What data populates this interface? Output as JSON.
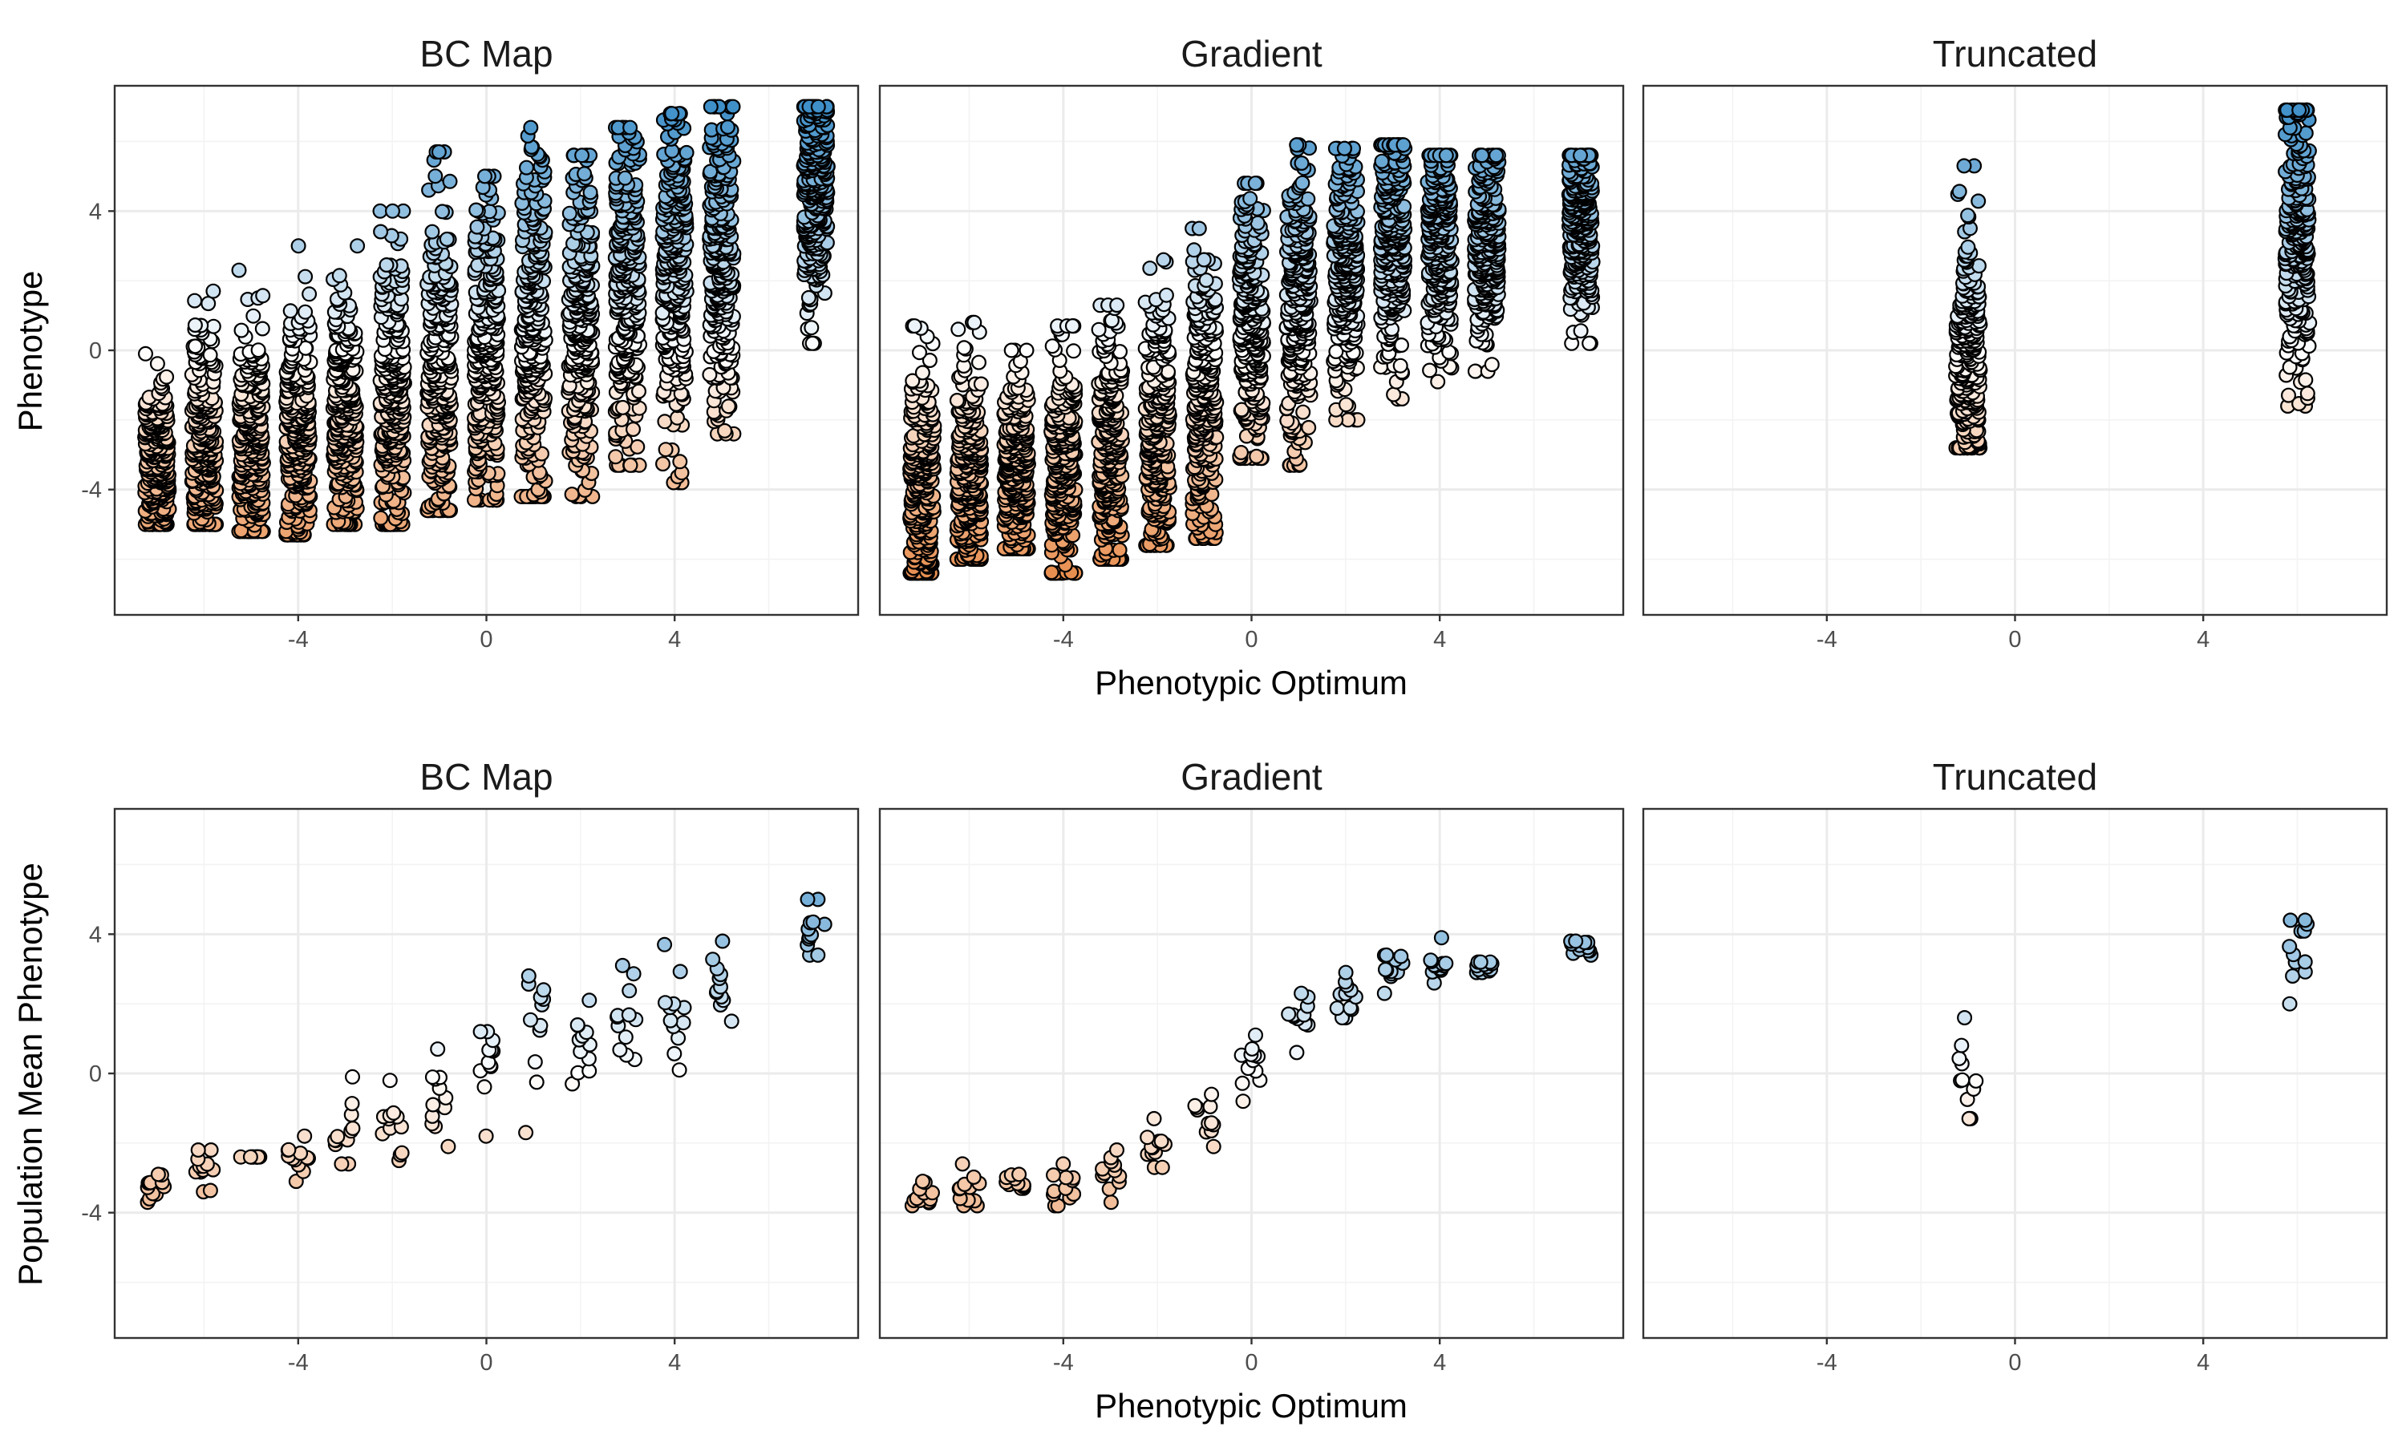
{
  "figure": {
    "rows": [
      {
        "y_axis_title": "Phenotype",
        "x_axis_title": "Phenotypic Optimum"
      },
      {
        "y_axis_title": "Population Mean Phenotype",
        "x_axis_title": "Phenotypic Optimum"
      }
    ]
  },
  "colors": {
    "low": "#e6843f",
    "mid": "#ffffff",
    "high": "#3f8fc8",
    "point_stroke": "#000000",
    "grid": "#ebebeb",
    "panel_border": "#333333"
  },
  "chart_data": [
    {
      "type": "scatter",
      "row": 0,
      "col": 0,
      "title": "BC Map",
      "xlabel": "",
      "ylabel": "Phenotype",
      "xlim": [
        -7.9,
        7.9
      ],
      "ylim": [
        -7.6,
        7.6
      ],
      "x_ticks": [
        -4,
        0,
        4
      ],
      "y_ticks": [
        -4,
        0,
        4
      ],
      "grid": true,
      "color_by": "y",
      "groups": [
        {
          "x": -7,
          "y_min": -5.0,
          "y_max": -0.1,
          "y_mean": -3.3
        },
        {
          "x": -6,
          "y_min": -5.0,
          "y_max": 1.7,
          "y_mean": -3.0
        },
        {
          "x": -5,
          "y_min": -5.2,
          "y_max": 2.3,
          "y_mean": -2.8
        },
        {
          "x": -4,
          "y_min": -5.3,
          "y_max": 3.0,
          "y_mean": -2.6
        },
        {
          "x": -3,
          "y_min": -5.0,
          "y_max": 3.0,
          "y_mean": -2.2
        },
        {
          "x": -2,
          "y_min": -5.0,
          "y_max": 4.0,
          "y_mean": -1.4
        },
        {
          "x": -1,
          "y_min": -4.6,
          "y_max": 5.7,
          "y_mean": -0.9
        },
        {
          "x": 0,
          "y_min": -4.3,
          "y_max": 5.0,
          "y_mean": -0.2
        },
        {
          "x": 1,
          "y_min": -4.2,
          "y_max": 6.4,
          "y_mean": 0.5
        },
        {
          "x": 2,
          "y_min": -4.2,
          "y_max": 5.6,
          "y_mean": 0.9
        },
        {
          "x": 3,
          "y_min": -3.3,
          "y_max": 6.4,
          "y_mean": 1.8
        },
        {
          "x": 4,
          "y_min": -3.8,
          "y_max": 6.8,
          "y_mean": 2.2
        },
        {
          "x": 5,
          "y_min": -2.4,
          "y_max": 7.0,
          "y_mean": 2.6
        },
        {
          "x": 7,
          "y_min": 0.2,
          "y_max": 7.0,
          "y_mean": 4.5
        }
      ]
    },
    {
      "type": "scatter",
      "row": 0,
      "col": 1,
      "title": "Gradient",
      "xlabel": "Phenotypic Optimum",
      "ylabel": "",
      "xlim": [
        -7.9,
        7.9
      ],
      "ylim": [
        -7.6,
        7.6
      ],
      "x_ticks": [
        -4,
        0,
        4
      ],
      "y_ticks": [
        -4,
        0,
        4
      ],
      "grid": true,
      "color_by": "y",
      "groups": [
        {
          "x": -7,
          "y_min": -6.4,
          "y_max": 0.7,
          "y_mean": -3.8
        },
        {
          "x": -6,
          "y_min": -6.0,
          "y_max": 0.8,
          "y_mean": -3.6
        },
        {
          "x": -5,
          "y_min": -5.7,
          "y_max": 0.0,
          "y_mean": -3.5
        },
        {
          "x": -4,
          "y_min": -6.4,
          "y_max": 0.7,
          "y_mean": -3.3
        },
        {
          "x": -3,
          "y_min": -6.0,
          "y_max": 1.3,
          "y_mean": -3.0
        },
        {
          "x": -2,
          "y_min": -5.6,
          "y_max": 2.6,
          "y_mean": -2.3
        },
        {
          "x": -1,
          "y_min": -5.4,
          "y_max": 3.5,
          "y_mean": -1.5
        },
        {
          "x": 0,
          "y_min": -3.1,
          "y_max": 4.8,
          "y_mean": 0.3
        },
        {
          "x": 1,
          "y_min": -3.3,
          "y_max": 5.9,
          "y_mean": 1.5
        },
        {
          "x": 2,
          "y_min": -2.0,
          "y_max": 5.8,
          "y_mean": 2.3
        },
        {
          "x": 3,
          "y_min": -1.4,
          "y_max": 5.9,
          "y_mean": 3.0
        },
        {
          "x": 4,
          "y_min": -0.9,
          "y_max": 5.6,
          "y_mean": 3.0
        },
        {
          "x": 5,
          "y_min": -0.6,
          "y_max": 5.6,
          "y_mean": 3.1
        },
        {
          "x": 7,
          "y_min": 0.2,
          "y_max": 5.6,
          "y_mean": 3.6
        }
      ]
    },
    {
      "type": "scatter",
      "row": 0,
      "col": 2,
      "title": "Truncated",
      "xlabel": "",
      "ylabel": "",
      "xlim": [
        -7.9,
        7.9
      ],
      "ylim": [
        -7.6,
        7.6
      ],
      "x_ticks": [
        -4,
        0,
        4
      ],
      "y_ticks": [
        -4,
        0,
        4
      ],
      "grid": true,
      "color_by": "y",
      "groups": [
        {
          "x": -1,
          "y_min": -2.8,
          "y_max": 5.3,
          "y_mean": -0.5
        },
        {
          "x": 6,
          "y_min": -1.6,
          "y_max": 6.9,
          "y_mean": 3.4
        }
      ]
    },
    {
      "type": "scatter",
      "row": 1,
      "col": 0,
      "title": "BC Map",
      "xlabel": "",
      "ylabel": "Population Mean Phenotype",
      "xlim": [
        -7.9,
        7.9
      ],
      "ylim": [
        -7.6,
        7.6
      ],
      "x_ticks": [
        -4,
        0,
        4
      ],
      "y_ticks": [
        -4,
        0,
        4
      ],
      "grid": true,
      "color_by": "y",
      "groups": [
        {
          "x": -7,
          "y_min": -3.7,
          "y_max": -2.9,
          "y_mean": -3.3
        },
        {
          "x": -6,
          "y_min": -3.4,
          "y_max": -2.2,
          "y_mean": -2.7
        },
        {
          "x": -5,
          "y_min": -2.4,
          "y_max": -2.4,
          "y_mean": -2.4
        },
        {
          "x": -4,
          "y_min": -3.1,
          "y_max": -1.8,
          "y_mean": -2.3
        },
        {
          "x": -3,
          "y_min": -2.6,
          "y_max": -0.1,
          "y_mean": -1.6
        },
        {
          "x": -2,
          "y_min": -2.5,
          "y_max": -0.2,
          "y_mean": -1.4
        },
        {
          "x": -1,
          "y_min": -2.1,
          "y_max": 0.7,
          "y_mean": -0.9
        },
        {
          "x": 0,
          "y_min": -1.8,
          "y_max": 1.2,
          "y_mean": -0.1
        },
        {
          "x": 1,
          "y_min": -1.7,
          "y_max": 2.8,
          "y_mean": 0.6
        },
        {
          "x": 2,
          "y_min": -0.3,
          "y_max": 2.1,
          "y_mean": 0.7
        },
        {
          "x": 3,
          "y_min": 0.4,
          "y_max": 3.1,
          "y_mean": 1.7
        },
        {
          "x": 4,
          "y_min": 0.1,
          "y_max": 3.7,
          "y_mean": 2.0
        },
        {
          "x": 5,
          "y_min": 1.5,
          "y_max": 3.8,
          "y_mean": 2.6
        },
        {
          "x": 7,
          "y_min": 3.4,
          "y_max": 5.0,
          "y_mean": 4.2
        }
      ]
    },
    {
      "type": "scatter",
      "row": 1,
      "col": 1,
      "title": "Gradient",
      "xlabel": "Phenotypic Optimum",
      "ylabel": "",
      "xlim": [
        -7.9,
        7.9
      ],
      "ylim": [
        -7.6,
        7.6
      ],
      "x_ticks": [
        -4,
        0,
        4
      ],
      "y_ticks": [
        -4,
        0,
        4
      ],
      "grid": true,
      "color_by": "y",
      "groups": [
        {
          "x": -7,
          "y_min": -3.8,
          "y_max": -3.1,
          "y_mean": -3.5
        },
        {
          "x": -6,
          "y_min": -3.8,
          "y_max": -2.6,
          "y_mean": -3.4
        },
        {
          "x": -5,
          "y_min": -3.3,
          "y_max": -2.9,
          "y_mean": -3.1
        },
        {
          "x": -4,
          "y_min": -3.8,
          "y_max": -2.6,
          "y_mean": -3.2
        },
        {
          "x": -3,
          "y_min": -3.7,
          "y_max": -2.2,
          "y_mean": -2.9
        },
        {
          "x": -2,
          "y_min": -2.7,
          "y_max": -1.3,
          "y_mean": -2.1
        },
        {
          "x": -1,
          "y_min": -2.1,
          "y_max": -0.6,
          "y_mean": -1.4
        },
        {
          "x": 0,
          "y_min": -0.8,
          "y_max": 1.1,
          "y_mean": 0.2
        },
        {
          "x": 1,
          "y_min": 0.6,
          "y_max": 2.3,
          "y_mean": 1.4
        },
        {
          "x": 2,
          "y_min": 1.6,
          "y_max": 2.9,
          "y_mean": 2.3
        },
        {
          "x": 3,
          "y_min": 2.3,
          "y_max": 3.4,
          "y_mean": 3.0
        },
        {
          "x": 4,
          "y_min": 2.6,
          "y_max": 3.9,
          "y_mean": 3.1
        },
        {
          "x": 5,
          "y_min": 2.9,
          "y_max": 3.2,
          "y_mean": 3.1
        },
        {
          "x": 7,
          "y_min": 3.4,
          "y_max": 3.8,
          "y_mean": 3.6
        }
      ]
    },
    {
      "type": "scatter",
      "row": 1,
      "col": 2,
      "title": "Truncated",
      "xlabel": "",
      "ylabel": "",
      "xlim": [
        -7.9,
        7.9
      ],
      "ylim": [
        -7.6,
        7.6
      ],
      "x_ticks": [
        -4,
        0,
        4
      ],
      "y_ticks": [
        -4,
        0,
        4
      ],
      "grid": true,
      "color_by": "y",
      "groups": [
        {
          "x": -1,
          "y_min": -1.3,
          "y_max": 1.6,
          "y_mean": -0.5
        },
        {
          "x": 6,
          "y_min": 2.0,
          "y_max": 4.4,
          "y_mean": 3.5
        }
      ]
    }
  ]
}
